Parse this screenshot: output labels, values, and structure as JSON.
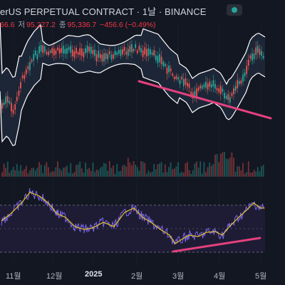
{
  "header": {
    "title": "erUS PERPETUAL CONTRACT · 1날 · BINANCE",
    "ohlc": {
      "open_value": "66.6",
      "low_label": "저",
      "low_value": "95,227.2",
      "close_label": "종",
      "close_value": "95,336.7",
      "change_value": "−456.6 (−0.49%)"
    }
  },
  "colors": {
    "background": "#131722",
    "bands": "#ffffff",
    "cloud": "#1e293b",
    "up": "#26a69a",
    "down": "#ef5350",
    "trendline": "#e5407e",
    "rsi": "#7b68ee",
    "rsi_ma": "#e6c229",
    "rsi_zone": "#201d36"
  },
  "x_axis": {
    "labels": [
      "11월",
      "12월",
      "2025",
      "2월",
      "3월",
      "4월",
      "5월"
    ]
  },
  "chart_data": [
    {
      "type": "candlestick",
      "overlays": [
        "bollinger-bands",
        "trendline"
      ],
      "trend": [
        "range",
        "rally",
        "plateau",
        "decline",
        "rebound"
      ]
    },
    {
      "type": "bar",
      "name": "volume"
    },
    {
      "type": "line",
      "name": "rsi",
      "zones": [
        "overbought",
        "oversold"
      ],
      "overlays": [
        "rsi-ma",
        "trendline"
      ]
    }
  ]
}
